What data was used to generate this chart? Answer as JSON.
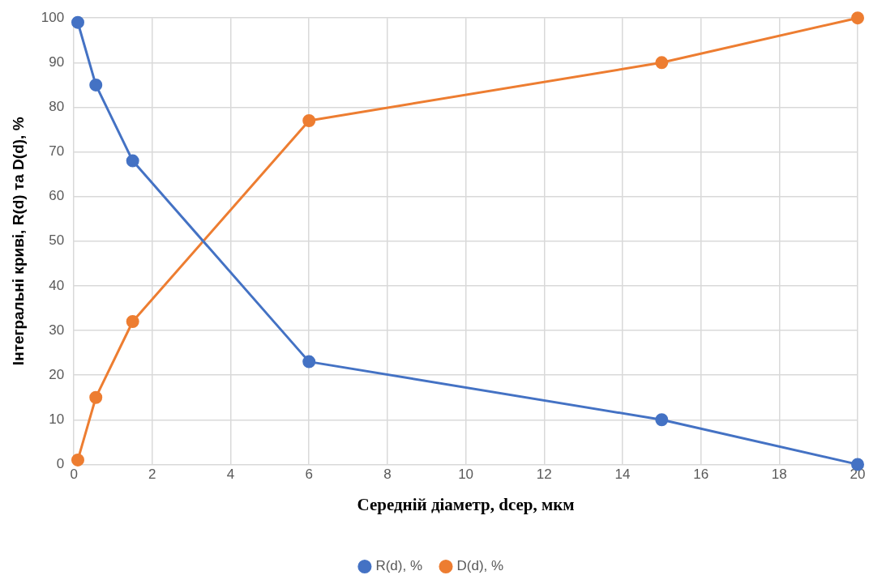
{
  "chart_data": {
    "type": "line",
    "xlabel": "Середній діаметр, dсер, мкм",
    "ylabel": "Інтегральні криві, R(d) та D(d), %",
    "x": [
      0.1,
      0.56,
      1.5,
      6,
      15,
      20
    ],
    "series": [
      {
        "name": "R(d), %",
        "color": "#4472c4",
        "values": [
          99,
          85,
          68,
          23,
          10,
          0
        ]
      },
      {
        "name": "D(d), %",
        "color": "#ed7d31",
        "values": [
          1,
          15,
          32,
          77,
          90,
          100
        ]
      }
    ],
    "xlim": [
      0,
      20
    ],
    "xticks": [
      0,
      2,
      4,
      6,
      8,
      10,
      12,
      14,
      16,
      18,
      20
    ],
    "ylim": [
      0,
      100
    ],
    "yticks": [
      0,
      10,
      20,
      30,
      40,
      50,
      60,
      70,
      80,
      90,
      100
    ],
    "grid": true,
    "legend": "bottom",
    "marker": "circle",
    "line_style": "solid"
  }
}
